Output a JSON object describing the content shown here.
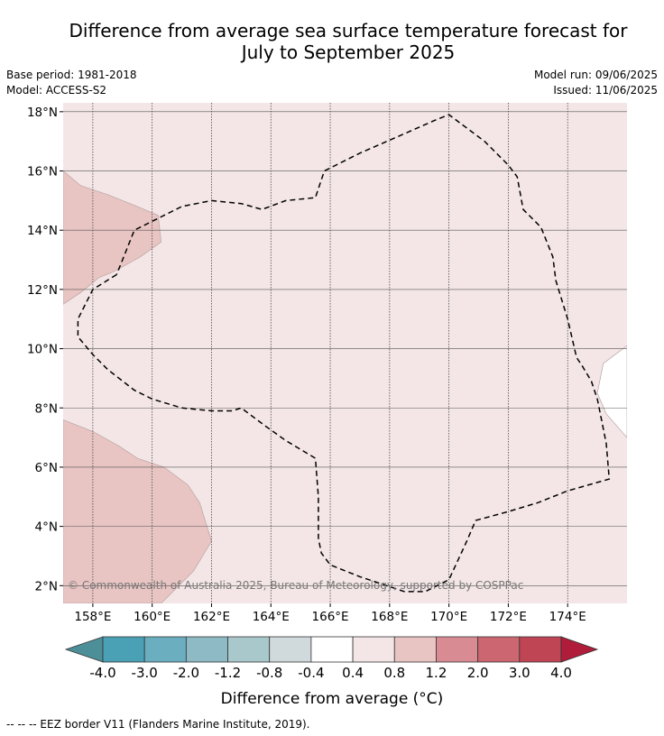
{
  "header": {
    "title_line1": "Difference from average sea surface temperature forecast for",
    "title_line2": "July to September 2025",
    "base_period": "Base period: 1981-2018",
    "model": "Model: ACCESS-S2",
    "model_run": "Model run: 09/06/2025",
    "issued": "Issued: 11/06/2025"
  },
  "map": {
    "copyright": "© Commonwealth of Australia 2025, Bureau of Meteorology, supported by COSPPac",
    "gridlines": true,
    "xlim": [
      157,
      176
    ],
    "ylim": [
      1.4,
      18.3
    ]
  },
  "colorbar": {
    "label": "Difference from average (°C)",
    "ticks": [
      "-4.0",
      "-3.0",
      "-2.0",
      "-1.2",
      "-0.8",
      "-0.4",
      "0.4",
      "0.8",
      "1.2",
      "2.0",
      "3.0",
      "4.0"
    ],
    "colors": [
      "#4d8f99",
      "#4aa1b5",
      "#6aaebf",
      "#8ebac5",
      "#a9c8cc",
      "#d0dadc",
      "#ffffff",
      "#f4e6e6",
      "#e8c5c3",
      "#d98b94",
      "#cc6670",
      "#bf4555",
      "#b01d3a"
    ]
  },
  "footnote": "-- -- -- EEZ border V11 (Flanders Marine Institute, 2019).",
  "chart_data": {
    "type": "heatmap",
    "title": "Difference from average sea surface temperature forecast for July to September 2025",
    "xlabel": "",
    "ylabel": "",
    "x_ticks": [
      "158°E",
      "160°E",
      "162°E",
      "164°E",
      "166°E",
      "168°E",
      "170°E",
      "172°E",
      "174°E"
    ],
    "x_values": [
      158,
      160,
      162,
      164,
      166,
      168,
      170,
      172,
      174
    ],
    "y_ticks": [
      "2°N",
      "4°N",
      "6°N",
      "8°N",
      "10°N",
      "12°N",
      "14°N",
      "16°N",
      "18°N"
    ],
    "y_values": [
      2,
      4,
      6,
      8,
      10,
      12,
      14,
      16,
      18
    ],
    "xlim": [
      157,
      176
    ],
    "ylim": [
      1.4,
      18.3
    ],
    "background_category": "0.4 to 0.8",
    "regions": [
      {
        "category": "0.8 to 1.2",
        "lonlat": [
          [
            157,
            16
          ],
          [
            157.6,
            15.5
          ],
          [
            158.5,
            15.2
          ],
          [
            159.5,
            14.8
          ],
          [
            160.2,
            14.5
          ],
          [
            160.3,
            13.6
          ],
          [
            159.6,
            13.1
          ],
          [
            158.7,
            12.6
          ],
          [
            158.2,
            12.4
          ],
          [
            157.6,
            11.9
          ],
          [
            157,
            11.5
          ]
        ]
      },
      {
        "category": "0.8 to 1.2",
        "lonlat": [
          [
            157,
            7.6
          ],
          [
            158,
            7.2
          ],
          [
            158.9,
            6.7
          ],
          [
            159.5,
            6.3
          ],
          [
            160.4,
            6.0
          ],
          [
            161.2,
            5.4
          ],
          [
            161.6,
            4.8
          ],
          [
            162,
            3.5
          ],
          [
            161.4,
            2.5
          ],
          [
            160.3,
            1.4
          ],
          [
            157,
            1.4
          ]
        ]
      },
      {
        "category": "0.4 to -0.4",
        "lonlat": [
          [
            176,
            10.1
          ],
          [
            175.2,
            9.5
          ],
          [
            175,
            8.5
          ],
          [
            175.3,
            7.8
          ],
          [
            176,
            7
          ]
        ]
      }
    ],
    "eez_border": [
      [
        158.8,
        12.5
      ],
      [
        158,
        12
      ],
      [
        157.5,
        11
      ],
      [
        157.5,
        10.4
      ],
      [
        158,
        9.8
      ],
      [
        158.5,
        9.3
      ],
      [
        159.4,
        8.6
      ],
      [
        160,
        8.3
      ],
      [
        161,
        8.0
      ],
      [
        162,
        7.9
      ],
      [
        162.7,
        7.9
      ],
      [
        163,
        8.0
      ],
      [
        163.8,
        7.4
      ],
      [
        164.5,
        6.9
      ],
      [
        165.5,
        6.3
      ],
      [
        165.6,
        5
      ],
      [
        165.6,
        3.6
      ],
      [
        165.7,
        3.1
      ],
      [
        166,
        2.7
      ],
      [
        167,
        2.3
      ],
      [
        167.9,
        2
      ],
      [
        168.5,
        1.8
      ],
      [
        169.2,
        1.8
      ],
      [
        170,
        2.2
      ],
      [
        170.6,
        3.5
      ],
      [
        170.9,
        4.2
      ],
      [
        172,
        4.5
      ],
      [
        173,
        4.8
      ],
      [
        174,
        5.2
      ],
      [
        175.4,
        5.6
      ],
      [
        175.3,
        6.8
      ],
      [
        175,
        8.3
      ],
      [
        174.8,
        8.9
      ],
      [
        174.5,
        9.4
      ],
      [
        174.3,
        9.7
      ],
      [
        174,
        11
      ],
      [
        173.6,
        12.3
      ],
      [
        173.5,
        13.1
      ],
      [
        173.1,
        14.1
      ],
      [
        172.5,
        14.7
      ],
      [
        172.3,
        15.8
      ],
      [
        172,
        16.2
      ],
      [
        171.2,
        17
      ],
      [
        170,
        17.9
      ],
      [
        169.5,
        17.7
      ],
      [
        168.6,
        17.3
      ],
      [
        167,
        16.6
      ],
      [
        165.8,
        16.0
      ],
      [
        165.5,
        15.1
      ],
      [
        164.5,
        15.0
      ],
      [
        163.7,
        14.7
      ],
      [
        163,
        14.9
      ],
      [
        162,
        15
      ],
      [
        161,
        14.8
      ],
      [
        160.6,
        14.6
      ],
      [
        159.4,
        14
      ],
      [
        159,
        13
      ],
      [
        158.8,
        12.5
      ]
    ]
  }
}
